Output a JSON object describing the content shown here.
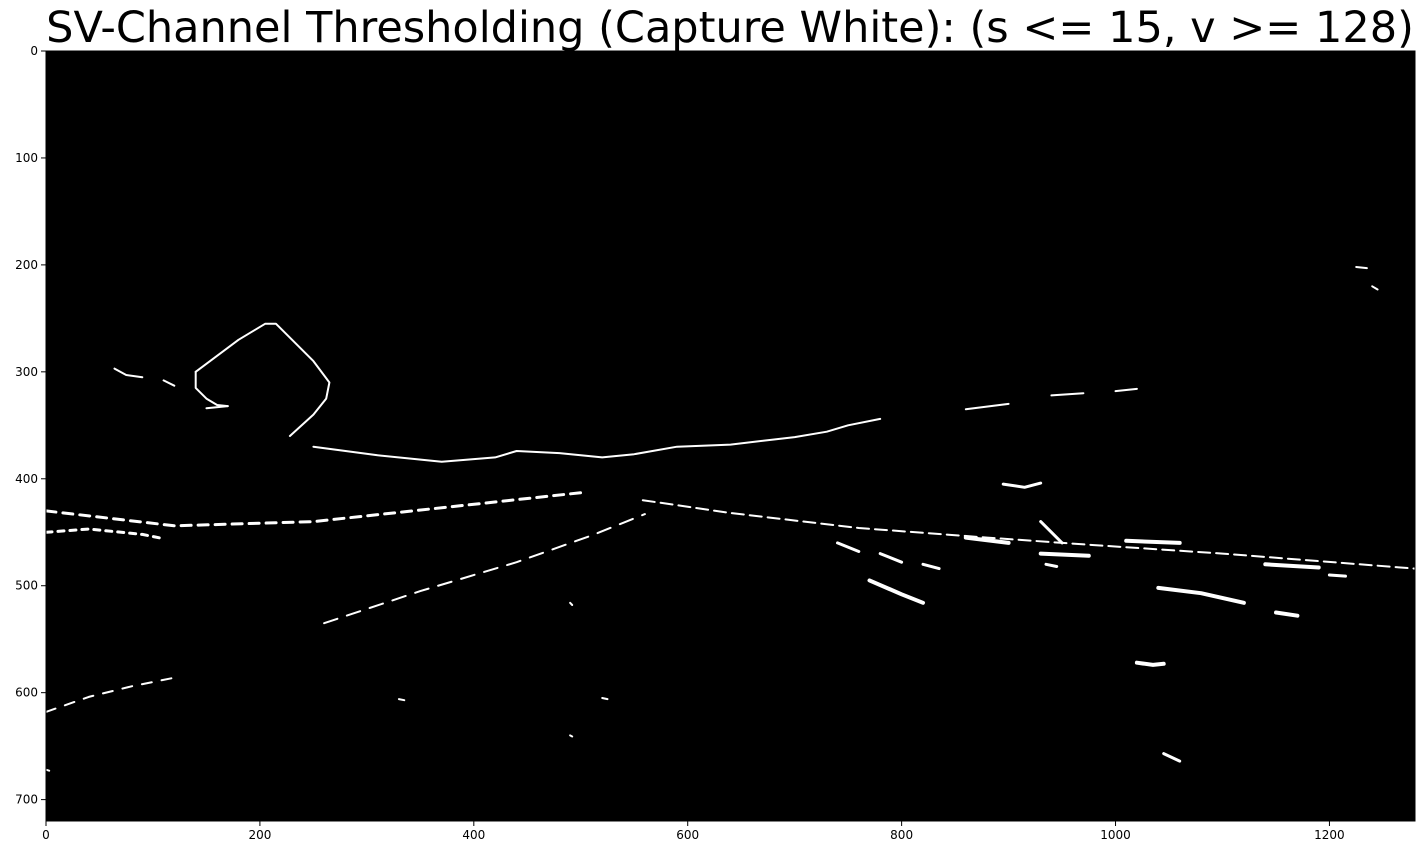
{
  "chart_data": {
    "type": "heatmap",
    "title": "SV-Channel Thresholding (Capture White): (s <= 15, v >= 128)",
    "xlim": [
      0,
      1280
    ],
    "ylim": [
      720,
      0
    ],
    "x_ticks": [
      0,
      200,
      400,
      600,
      800,
      1000,
      1200
    ],
    "y_ticks": [
      0,
      100,
      200,
      300,
      400,
      500,
      600,
      700
    ],
    "colormap": "gray",
    "background_color": "#000000",
    "foreground_color": "#ffffff",
    "features": [
      {
        "name": "sign-outline",
        "type": "line",
        "width": 2,
        "points": [
          [
            140,
            300
          ],
          [
            180,
            270
          ],
          [
            205,
            255
          ],
          [
            215,
            255
          ],
          [
            250,
            290
          ],
          [
            265,
            310
          ],
          [
            262,
            325
          ],
          [
            250,
            340
          ],
          [
            228,
            360
          ]
        ]
      },
      {
        "name": "sign-left-edge",
        "type": "line",
        "width": 2,
        "points": [
          [
            140,
            300
          ],
          [
            140,
            315
          ],
          [
            150,
            325
          ],
          [
            160,
            331
          ],
          [
            170,
            332
          ]
        ]
      },
      {
        "name": "sign-base",
        "type": "line",
        "width": 2,
        "points": [
          [
            170,
            332
          ],
          [
            150,
            334
          ]
        ]
      },
      {
        "name": "upper-left-edge",
        "type": "line",
        "width": 2,
        "points": [
          [
            64,
            297
          ],
          [
            75,
            303
          ],
          [
            90,
            305
          ]
        ]
      },
      {
        "name": "upper-left-edge-2",
        "type": "line",
        "width": 2,
        "points": [
          [
            110,
            308
          ],
          [
            120,
            313
          ]
        ]
      },
      {
        "name": "horizon-left",
        "type": "line",
        "width": 2,
        "points": [
          [
            250,
            370
          ],
          [
            310,
            378
          ],
          [
            370,
            384
          ],
          [
            420,
            380
          ],
          [
            440,
            374
          ],
          [
            480,
            376
          ],
          [
            520,
            380
          ],
          [
            550,
            377
          ],
          [
            590,
            370
          ],
          [
            640,
            368
          ],
          [
            700,
            361
          ],
          [
            730,
            356
          ],
          [
            750,
            350
          ],
          [
            780,
            344
          ]
        ]
      },
      {
        "name": "horizon-right-dash",
        "type": "line",
        "width": 2,
        "points": [
          [
            860,
            335
          ],
          [
            900,
            330
          ]
        ]
      },
      {
        "name": "horizon-right-dash-2",
        "type": "line",
        "width": 2,
        "points": [
          [
            940,
            322
          ],
          [
            970,
            320
          ]
        ]
      },
      {
        "name": "horizon-far-dash",
        "type": "line",
        "width": 2,
        "points": [
          [
            1000,
            318
          ],
          [
            1020,
            316
          ]
        ]
      },
      {
        "name": "car-blob",
        "type": "line",
        "width": 3,
        "points": [
          [
            895,
            405
          ],
          [
            915,
            408
          ],
          [
            930,
            404
          ]
        ]
      },
      {
        "name": "left-lane-dashes",
        "type": "line",
        "width": 3,
        "dash": [
          10,
          7
        ],
        "points": [
          [
            0,
            430
          ],
          [
            120,
            444
          ],
          [
            250,
            440
          ],
          [
            380,
            426
          ],
          [
            500,
            413
          ]
        ]
      },
      {
        "name": "left-lane-near",
        "type": "line",
        "width": 3,
        "dash": [
          6,
          6
        ],
        "points": [
          [
            0,
            450
          ],
          [
            40,
            447
          ],
          [
            90,
            452
          ],
          [
            110,
            456
          ]
        ]
      },
      {
        "name": "center-line",
        "type": "line",
        "width": 2,
        "dash": [
          12,
          6
        ],
        "points": [
          [
            558,
            420
          ],
          [
            640,
            432
          ],
          [
            760,
            446
          ],
          [
            880,
            455
          ],
          [
            980,
            462
          ],
          [
            1100,
            470
          ],
          [
            1280,
            484
          ]
        ]
      },
      {
        "name": "right-lane-dash-1",
        "type": "line",
        "width": 4,
        "points": [
          [
            860,
            455
          ],
          [
            900,
            460
          ]
        ]
      },
      {
        "name": "right-lane-dash-2",
        "type": "line",
        "width": 4,
        "points": [
          [
            930,
            470
          ],
          [
            975,
            472
          ]
        ]
      },
      {
        "name": "right-lane-dash-3",
        "type": "line",
        "width": 4,
        "points": [
          [
            1010,
            458
          ],
          [
            1060,
            460
          ]
        ]
      },
      {
        "name": "right-lane-dash-4",
        "type": "line",
        "width": 4,
        "points": [
          [
            1140,
            480
          ],
          [
            1190,
            483
          ]
        ]
      },
      {
        "name": "right-lane-near-1",
        "type": "line",
        "width": 4,
        "points": [
          [
            770,
            495
          ],
          [
            800,
            508
          ],
          [
            820,
            516
          ]
        ]
      },
      {
        "name": "right-lane-near-2",
        "type": "line",
        "width": 4,
        "points": [
          [
            1040,
            502
          ],
          [
            1080,
            507
          ],
          [
            1120,
            516
          ]
        ]
      },
      {
        "name": "right-lane-near-3",
        "type": "line",
        "width": 4,
        "points": [
          [
            1150,
            525
          ],
          [
            1170,
            528
          ]
        ]
      },
      {
        "name": "near-dash-a",
        "type": "line",
        "width": 3,
        "points": [
          [
            740,
            460
          ],
          [
            760,
            468
          ]
        ]
      },
      {
        "name": "near-dash-b",
        "type": "line",
        "width": 3,
        "points": [
          [
            780,
            470
          ],
          [
            800,
            478
          ]
        ]
      },
      {
        "name": "near-dash-c",
        "type": "line",
        "width": 3,
        "points": [
          [
            820,
            480
          ],
          [
            835,
            484
          ]
        ]
      },
      {
        "name": "left-road-edge",
        "type": "line",
        "width": 2,
        "dash": [
          14,
          10
        ],
        "points": [
          [
            260,
            535
          ],
          [
            350,
            505
          ],
          [
            440,
            478
          ],
          [
            510,
            453
          ],
          [
            560,
            433
          ]
        ]
      },
      {
        "name": "far-left-edge",
        "type": "line",
        "width": 2,
        "dash": [
          10,
          10
        ],
        "points": [
          [
            0,
            618
          ],
          [
            40,
            604
          ],
          [
            80,
            594
          ],
          [
            120,
            586
          ]
        ]
      },
      {
        "name": "right-edge-blob",
        "type": "line",
        "width": 4,
        "points": [
          [
            1020,
            572
          ],
          [
            1035,
            574
          ],
          [
            1045,
            573
          ]
        ]
      },
      {
        "name": "right-edge-blob-2",
        "type": "line",
        "width": 3,
        "points": [
          [
            1200,
            490
          ],
          [
            1215,
            491
          ]
        ]
      },
      {
        "name": "stripe-1",
        "type": "line",
        "width": 3,
        "points": [
          [
            930,
            440
          ],
          [
            950,
            460
          ]
        ]
      },
      {
        "name": "stripe-2",
        "type": "line",
        "width": 3,
        "points": [
          [
            935,
            480
          ],
          [
            945,
            482
          ]
        ]
      },
      {
        "name": "stripe-3",
        "type": "line",
        "width": 3,
        "points": [
          [
            1045,
            657
          ],
          [
            1060,
            664
          ]
        ]
      },
      {
        "name": "far-right-dash",
        "type": "line",
        "width": 2,
        "points": [
          [
            1225,
            202
          ],
          [
            1235,
            203
          ]
        ]
      },
      {
        "name": "far-right-dash-2",
        "type": "line",
        "width": 2,
        "points": [
          [
            1240,
            220
          ],
          [
            1245,
            223
          ]
        ]
      },
      {
        "name": "spot-1",
        "type": "line",
        "width": 2,
        "points": [
          [
            490,
            516
          ],
          [
            492,
            518
          ]
        ]
      },
      {
        "name": "spot-2",
        "type": "line",
        "width": 2,
        "points": [
          [
            520,
            605
          ],
          [
            525,
            606
          ]
        ]
      },
      {
        "name": "spot-3",
        "type": "line",
        "width": 2,
        "points": [
          [
            490,
            640
          ],
          [
            492,
            641
          ]
        ]
      },
      {
        "name": "spot-4",
        "type": "line",
        "width": 2,
        "points": [
          [
            330,
            606
          ],
          [
            335,
            607
          ]
        ]
      },
      {
        "name": "spot-5",
        "type": "line",
        "width": 2,
        "points": [
          [
            0,
            672
          ],
          [
            3,
            673
          ]
        ]
      }
    ]
  }
}
